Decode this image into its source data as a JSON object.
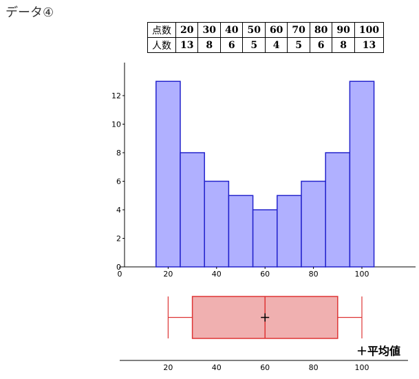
{
  "heading": "データ④",
  "table": {
    "row1_label": "点数",
    "row2_label": "人数",
    "scores": [
      "20",
      "30",
      "40",
      "50",
      "60",
      "70",
      "80",
      "90",
      "100"
    ],
    "counts": [
      "13",
      "8",
      "6",
      "5",
      "4",
      "5",
      "6",
      "8",
      "13"
    ]
  },
  "legend": {
    "mean_label": "＋平均値"
  },
  "colors": {
    "bar_fill": "#b0b0ff",
    "bar_stroke": "#2222cc",
    "box_fill": "#f0b0b0",
    "box_stroke": "#dd3333"
  },
  "chart_data": [
    {
      "type": "bar",
      "categories": [
        20,
        30,
        40,
        50,
        60,
        70,
        80,
        90,
        100
      ],
      "values": [
        13,
        8,
        6,
        5,
        4,
        5,
        6,
        8,
        13
      ],
      "bin_width": 10,
      "xlim": [
        0,
        120
      ],
      "ylim": [
        0,
        14
      ],
      "xticks": [
        0,
        20,
        40,
        60,
        80,
        100
      ],
      "yticks": [
        0,
        2,
        4,
        6,
        8,
        10,
        12
      ],
      "grid": false
    },
    {
      "type": "box",
      "min": 20,
      "q1": 30,
      "median": 60,
      "q3": 90,
      "max": 100,
      "mean": 60,
      "xticks": [
        20,
        40,
        60,
        80,
        100
      ]
    }
  ]
}
